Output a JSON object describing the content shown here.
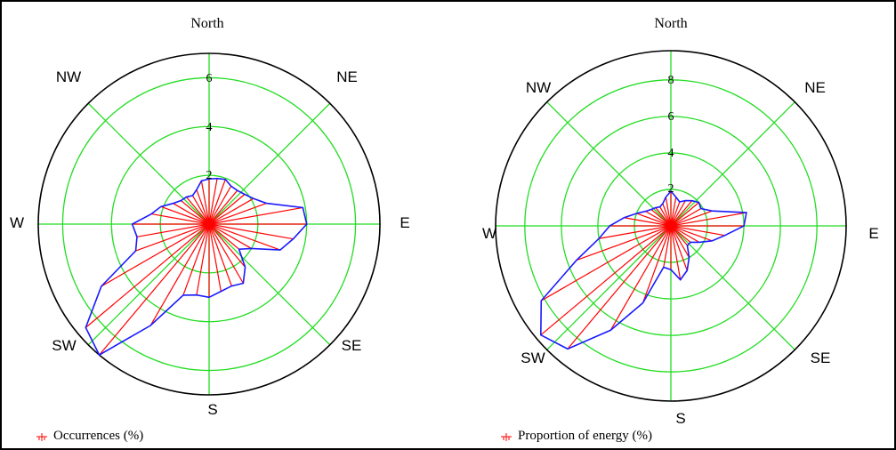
{
  "chart_data": [
    {
      "type": "polar-rose",
      "title": "",
      "legend": "Occurrences (%)",
      "legend_placement": "bottom-left",
      "direction_labels": {
        "N": "North",
        "NE": "NE",
        "E": "E",
        "SE": "SE",
        "S": "S",
        "SW": "SW",
        "W": "W",
        "NW": "NW"
      },
      "radial_ticks": [
        "2",
        "4",
        "6"
      ],
      "rmax": 7,
      "directions_deg": [
        0,
        10,
        20,
        30,
        40,
        50,
        60,
        70,
        80,
        90,
        100,
        110,
        120,
        130,
        140,
        150,
        160,
        170,
        180,
        190,
        200,
        210,
        220,
        230,
        240,
        250,
        260,
        270,
        280,
        290,
        300,
        310,
        320,
        330,
        340,
        350
      ],
      "values": [
        1.85,
        1.9,
        1.95,
        1.8,
        1.8,
        1.9,
        2.1,
        2.5,
        3.9,
        4.0,
        3.5,
        3.1,
        2.0,
        1.6,
        2.3,
        2.8,
        2.7,
        2.8,
        3.0,
        2.95,
        3.1,
        4.8,
        7.0,
        6.6,
        5.1,
        3.2,
        3.0,
        3.15,
        2.4,
        2.1,
        1.7,
        1.5,
        1.45,
        1.35,
        1.5,
        1.8
      ]
    },
    {
      "type": "polar-rose",
      "title": "",
      "legend": "Proportion of energy (%)",
      "legend_placement": "bottom-left",
      "direction_labels": {
        "N": "North",
        "NE": "NE",
        "E": "E",
        "SE": "SE",
        "S": "S",
        "SW": "SW",
        "W": "W",
        "NW": "NW"
      },
      "radial_ticks": [
        "2",
        "4",
        "6",
        "8"
      ],
      "rmax": 9.6,
      "directions_deg": [
        0,
        10,
        20,
        30,
        40,
        50,
        60,
        70,
        80,
        90,
        100,
        110,
        120,
        130,
        140,
        150,
        160,
        170,
        180,
        190,
        200,
        210,
        220,
        230,
        240,
        250,
        260,
        270,
        280,
        290,
        300,
        310,
        320,
        330,
        340,
        350
      ],
      "values": [
        1.9,
        1.6,
        1.4,
        1.6,
        1.8,
        2.0,
        1.9,
        2.4,
        4.2,
        4.0,
        3.0,
        2.4,
        1.8,
        1.4,
        1.4,
        2.0,
        2.6,
        3.0,
        2.4,
        2.3,
        4.5,
        6.6,
        8.8,
        9.3,
        8.2,
        5.5,
        4.0,
        3.35,
        2.6,
        2.0,
        1.6,
        1.4,
        1.3,
        1.2,
        1.3,
        1.6
      ]
    }
  ],
  "colors": {
    "grid": "#22dd22",
    "spoke": "#ff0000",
    "outline": "#1a1aff",
    "circle": "#000000"
  }
}
